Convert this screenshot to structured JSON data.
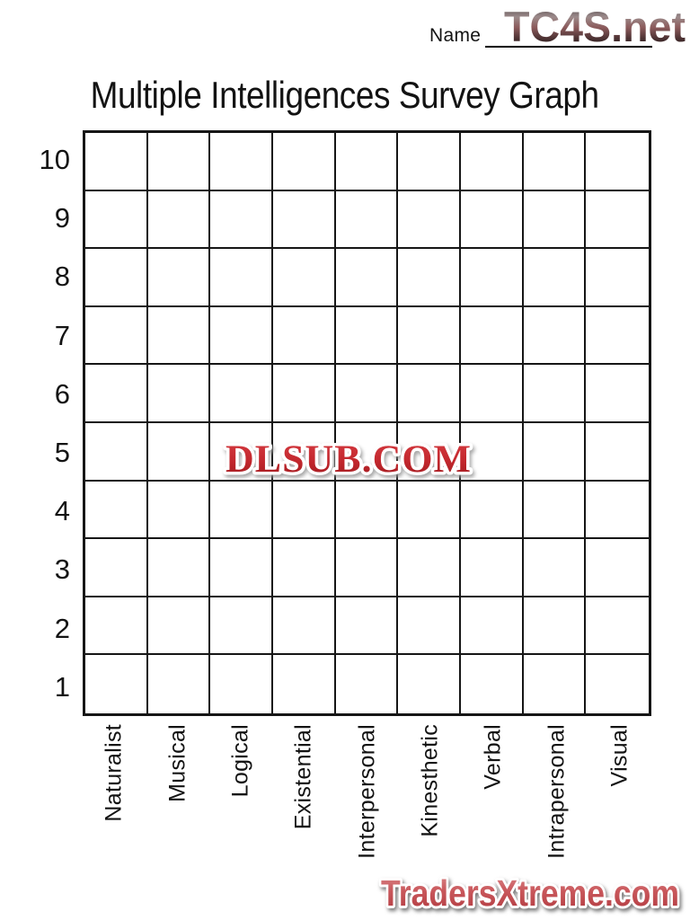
{
  "document": {
    "name_field": {
      "label": "Name",
      "value": ""
    },
    "title": "Multiple Intelligences Survey Graph"
  },
  "watermarks": {
    "top_right": "TC4S.net",
    "center": "DLSUB.COM",
    "bottom": "TradersXtreme.com"
  },
  "chart_data": {
    "type": "grid",
    "title": "Multiple Intelligences Survey Graph",
    "categories": [
      "Naturalist",
      "Musical",
      "Logical",
      "Existential",
      "Interpersonal",
      "Kinesthetic",
      "Verbal",
      "Intrapersonal",
      "Visual"
    ],
    "y_tick_labels": [
      "10",
      "9",
      "8",
      "7",
      "6",
      "5",
      "4",
      "3",
      "2",
      "1"
    ],
    "ylim": [
      1,
      10
    ],
    "values": [],
    "grid": "on",
    "legend": "none"
  },
  "colors": {
    "grid_line": "#161616",
    "text": "#131313",
    "watermark_red": "#c2272d",
    "watermark_red_dark": "#9c1a1f",
    "watermark_red_light": "#d63b41",
    "footer_red_light": "#d9898b",
    "footer_red": "#c9575b",
    "footer_red_dark": "#b03a3f"
  }
}
